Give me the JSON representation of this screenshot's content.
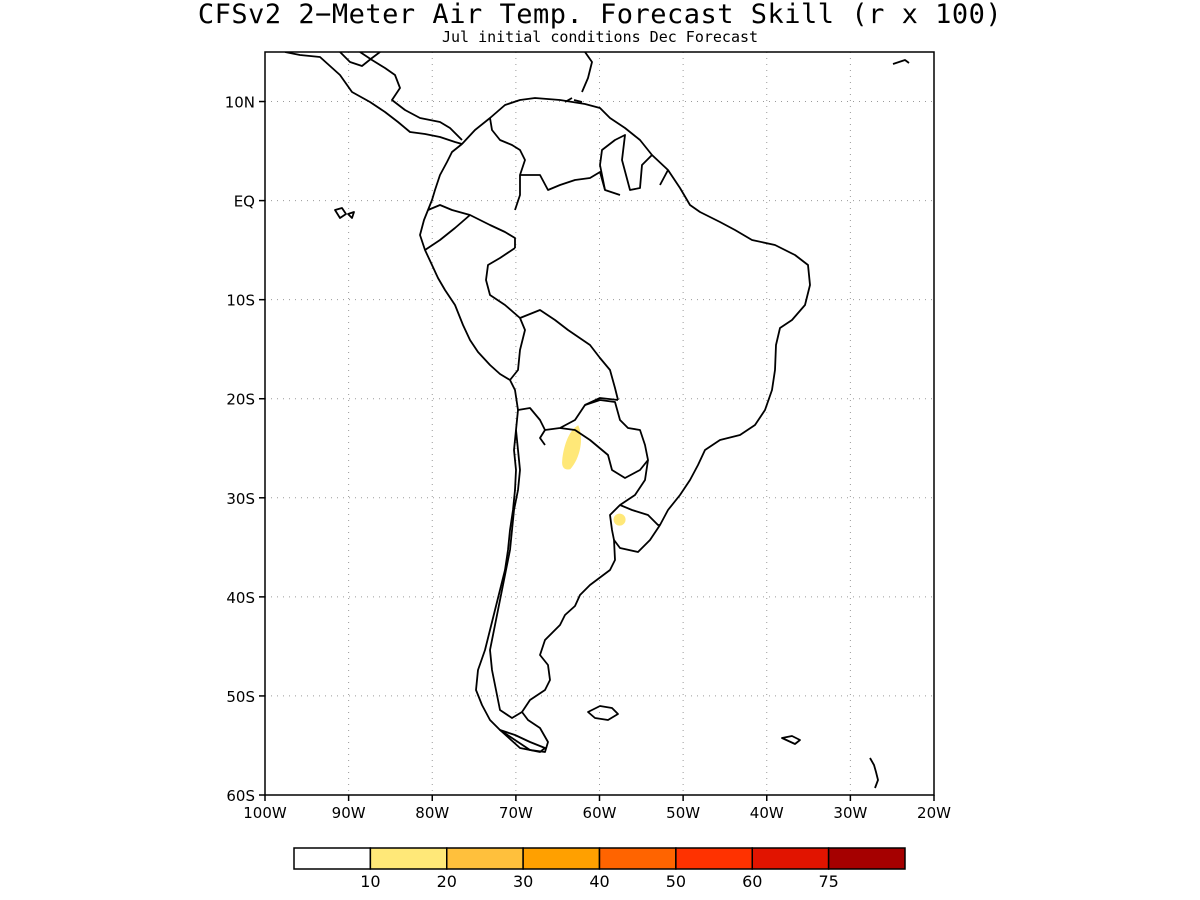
{
  "header": {
    "title": "CFSv2 2−Meter Air Temp. Forecast Skill (r x 100)",
    "subtitle": "Jul initial conditions  Dec Forecast"
  },
  "map": {
    "lon_range": [
      -100,
      -20
    ],
    "lat_range": [
      -60,
      15
    ],
    "lat_ticks": [
      {
        "value": 10,
        "label": "10N"
      },
      {
        "value": 0,
        "label": "EQ"
      },
      {
        "value": -10,
        "label": "10S"
      },
      {
        "value": -20,
        "label": "20S"
      },
      {
        "value": -30,
        "label": "30S"
      },
      {
        "value": -40,
        "label": "40S"
      },
      {
        "value": -50,
        "label": "50S"
      },
      {
        "value": -60,
        "label": "60S"
      }
    ],
    "lon_ticks": [
      {
        "value": -100,
        "label": "100W"
      },
      {
        "value": -90,
        "label": "90W"
      },
      {
        "value": -80,
        "label": "80W"
      },
      {
        "value": -70,
        "label": "70W"
      },
      {
        "value": -60,
        "label": "60W"
      },
      {
        "value": -50,
        "label": "50W"
      },
      {
        "value": -40,
        "label": "40W"
      },
      {
        "value": -30,
        "label": "30W"
      },
      {
        "value": -20,
        "label": "20W"
      }
    ],
    "grid": true,
    "skill_areas": [
      {
        "name": "northern-argentina",
        "class_index": 1,
        "center_lon": -63.5,
        "center_lat": -25
      },
      {
        "name": "uruguay-west",
        "class_index": 1,
        "center_lon": -57.6,
        "center_lat": -32.2
      }
    ]
  },
  "colorbar": {
    "colors": [
      "#ffffff",
      "#ffe878",
      "#ffc03c",
      "#ffa000",
      "#ff6400",
      "#ff3200",
      "#e11400",
      "#a50000"
    ],
    "labels": [
      "10",
      "20",
      "30",
      "40",
      "50",
      "60",
      "75"
    ]
  }
}
